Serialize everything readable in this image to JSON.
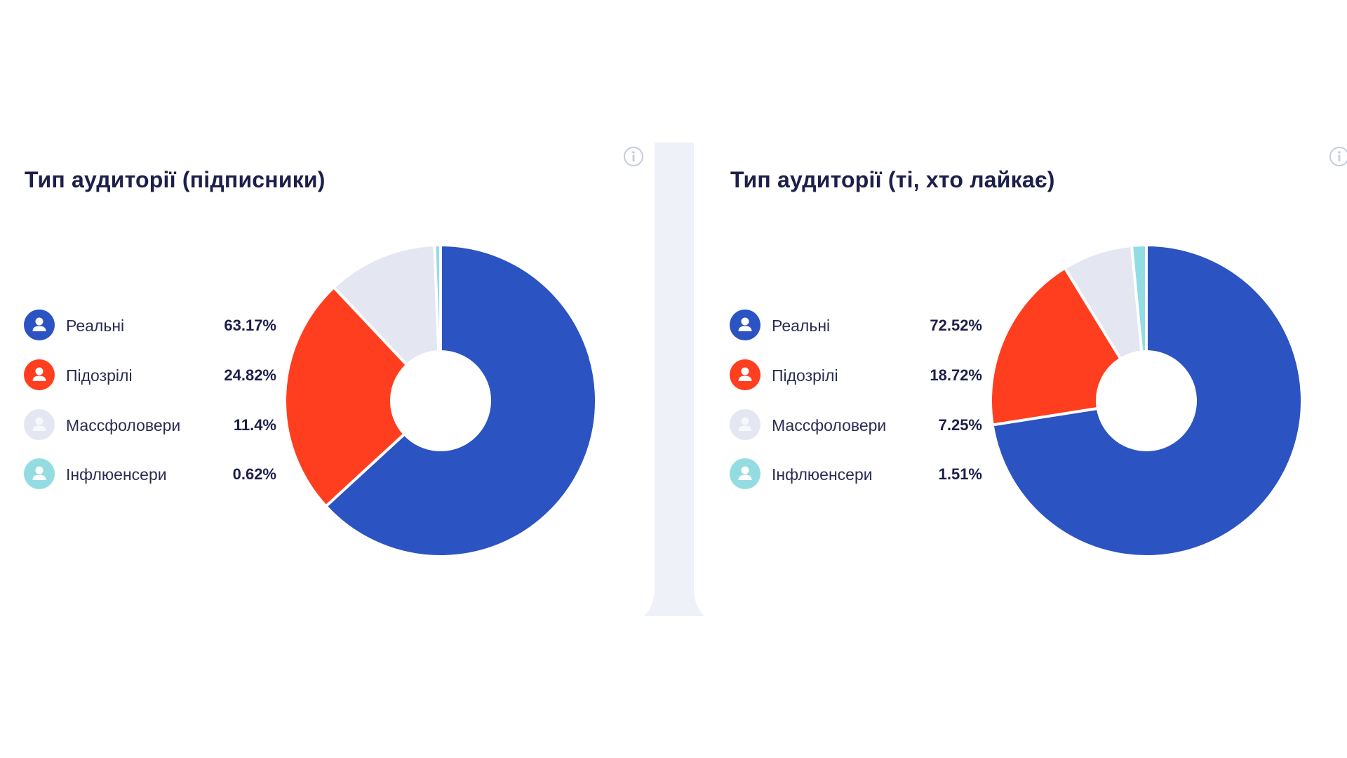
{
  "colors": {
    "real": "#2b53c1",
    "suspicious": "#ff3e1f",
    "massfollowers": "#e4e6f2",
    "influencers": "#93dde2",
    "divider": "#eef1f8",
    "title": "#1c1f4a",
    "info": "#c5cbe0"
  },
  "icons": {
    "badge": "user-icon",
    "info": "info-icon"
  },
  "chart_data": [
    {
      "type": "pie",
      "variant": "donut",
      "title": "Тип аудиторії (підписники)",
      "categories": [
        "Реальні",
        "Підозрілі",
        "Массфоловери",
        "Інфлюенсери"
      ],
      "values": [
        63.17,
        24.82,
        11.4,
        0.62
      ],
      "value_labels": [
        "63.17%",
        "24.82%",
        "11.4%",
        "0.62%"
      ],
      "legend_position": "left"
    },
    {
      "type": "pie",
      "variant": "donut",
      "title": "Тип аудиторії (ті, хто лайкає)",
      "categories": [
        "Реальні",
        "Підозрілі",
        "Массфоловери",
        "Інфлюенсери"
      ],
      "values": [
        72.52,
        18.72,
        7.25,
        1.51
      ],
      "value_labels": [
        "72.52%",
        "18.72%",
        "7.25%",
        "1.51%"
      ],
      "legend_position": "left"
    }
  ]
}
